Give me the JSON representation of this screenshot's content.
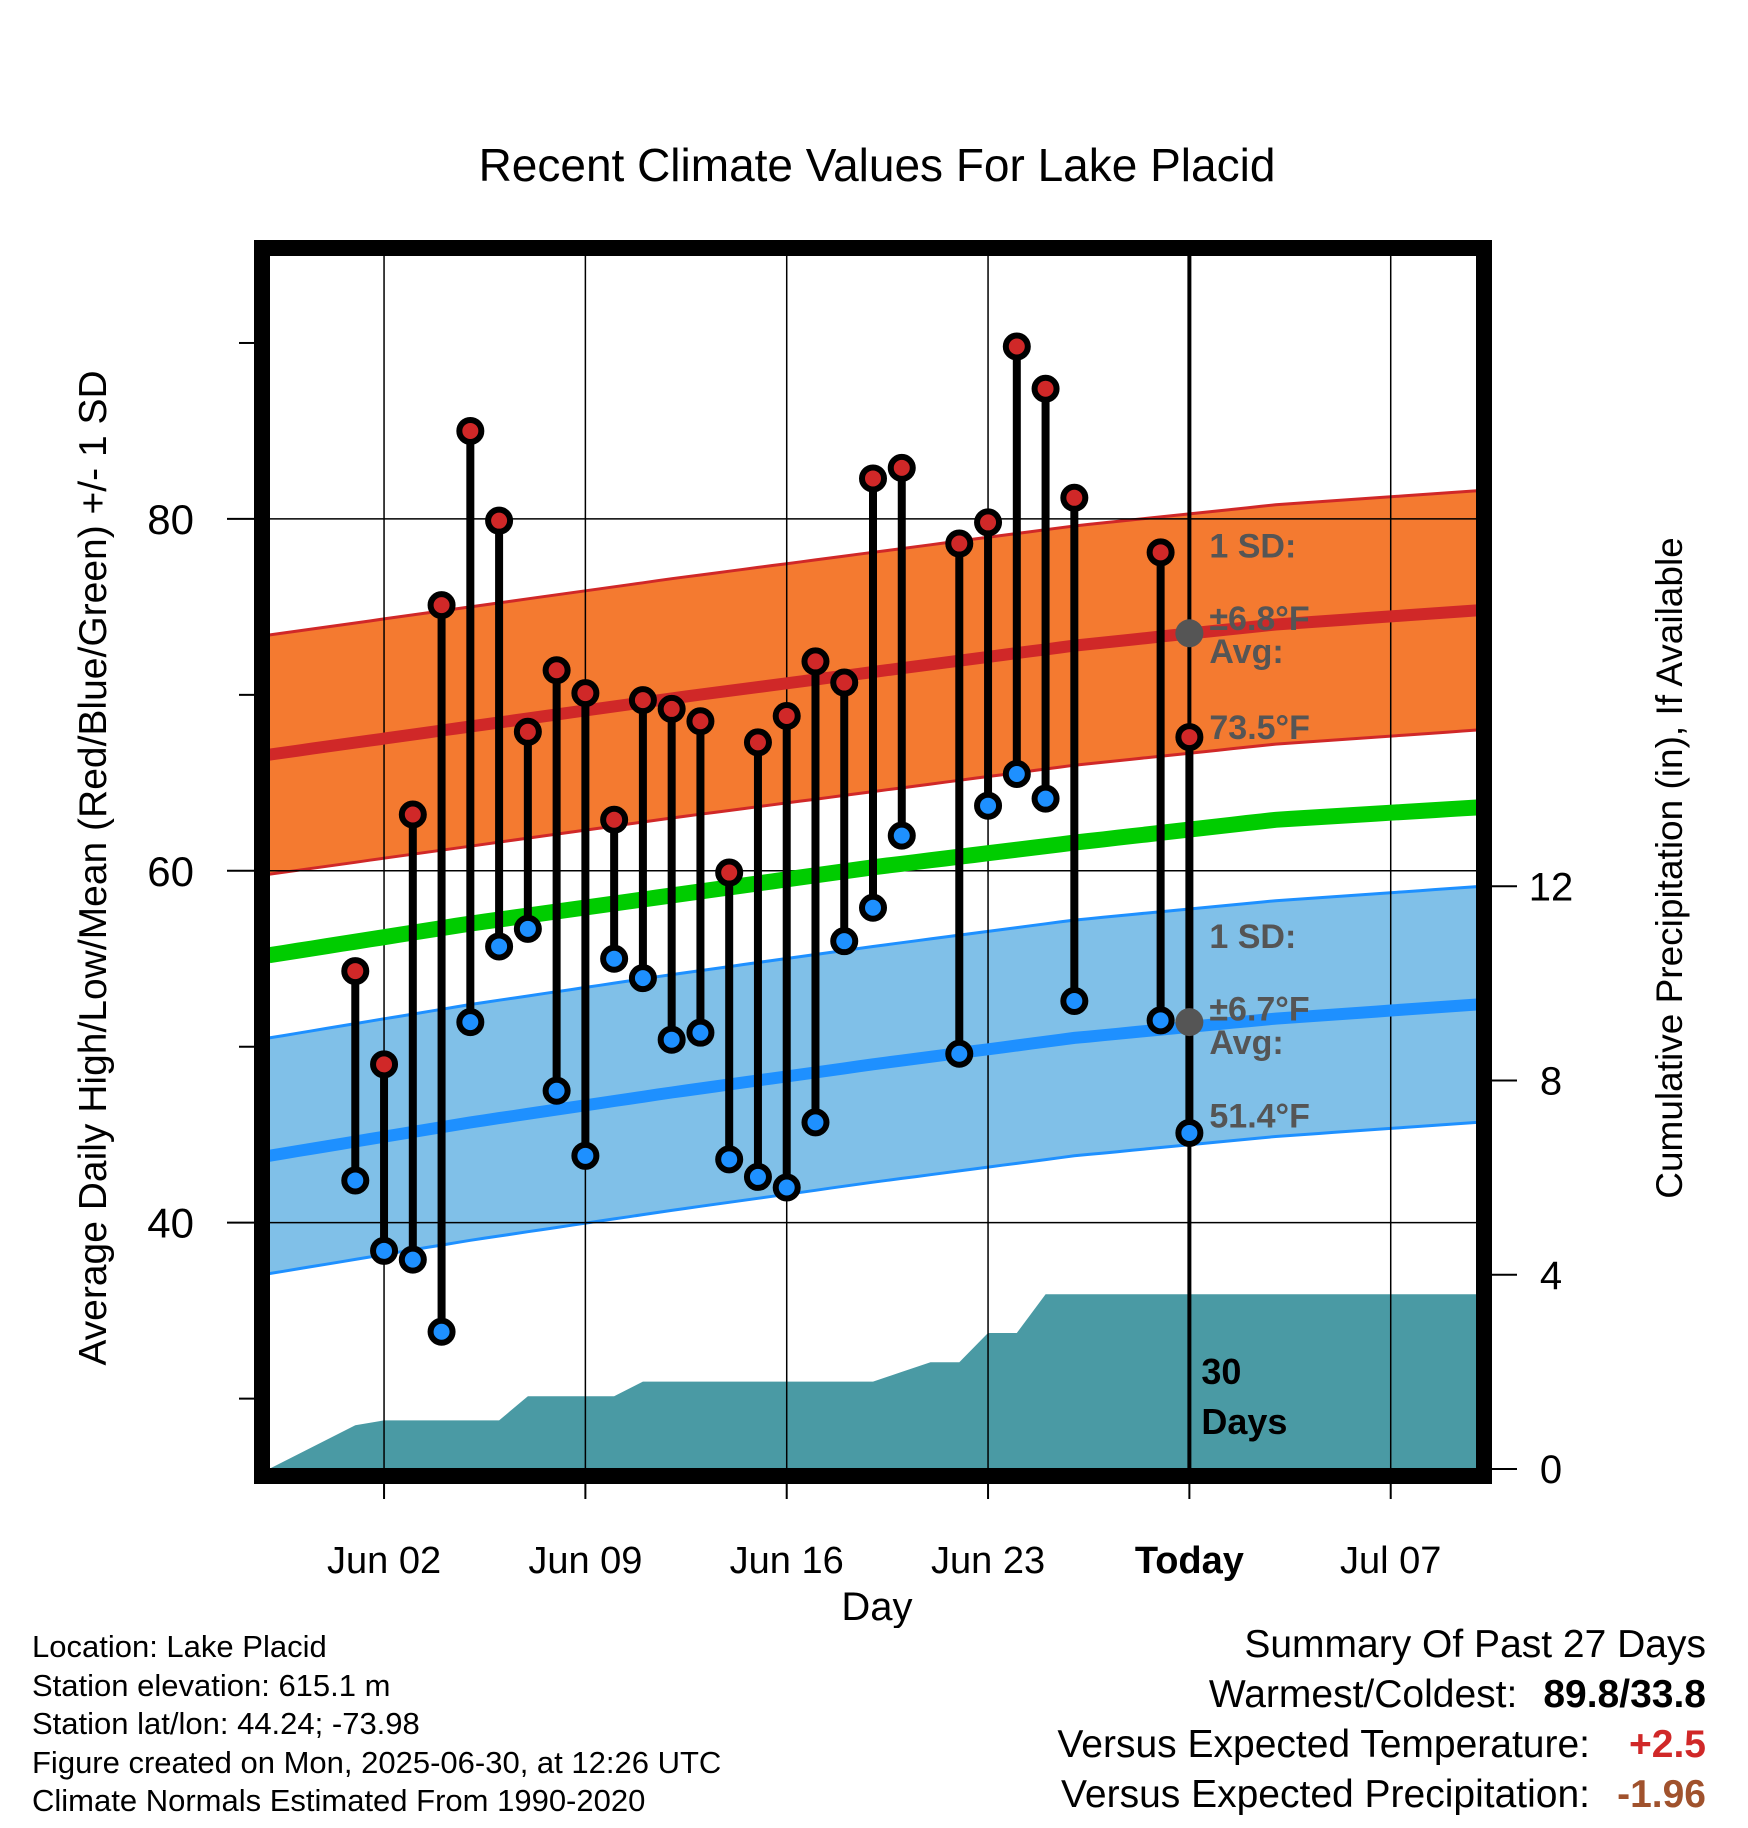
{
  "chart_data": {
    "type": "line",
    "title": "Recent Climate Values For Lake Placid",
    "xlabel": "Day",
    "ylabel_left": "Average Daily High/Low/Mean (Red/Blue/Green) +/- 1 SD",
    "ylabel_right": "Cumulative Precipitation (in), If Available",
    "x_tick_labels": [
      "Jun 02",
      "Jun 09",
      "Jun 16",
      "Jun 23",
      "Today",
      "Jul 07"
    ],
    "x_tick_dates": [
      "2025-06-02",
      "2025-06-09",
      "2025-06-16",
      "2025-06-23",
      "2025-06-30",
      "2025-07-07"
    ],
    "x_range": [
      "2025-05-29",
      "2025-07-10"
    ],
    "today": "2025-06-30",
    "y_left_range": [
      26,
      95
    ],
    "y_left_ticks": [
      40,
      60,
      80
    ],
    "y_right_range": [
      0,
      25
    ],
    "y_right_ticks": [
      0,
      4,
      8,
      12
    ],
    "grid": true,
    "daily_obs": [
      {
        "date": "2025-06-01",
        "high": 54.3,
        "low": 42.4
      },
      {
        "date": "2025-06-02",
        "high": 49.0,
        "low": 38.4
      },
      {
        "date": "2025-06-03",
        "high": 63.2,
        "low": 37.9
      },
      {
        "date": "2025-06-04",
        "high": 75.1,
        "low": 33.8
      },
      {
        "date": "2025-06-05",
        "high": 85.0,
        "low": 51.4
      },
      {
        "date": "2025-06-06",
        "high": 79.9,
        "low": 55.7
      },
      {
        "date": "2025-06-07",
        "high": 67.9,
        "low": 56.7
      },
      {
        "date": "2025-06-08",
        "high": 71.4,
        "low": 47.5
      },
      {
        "date": "2025-06-09",
        "high": 70.1,
        "low": 43.8
      },
      {
        "date": "2025-06-10",
        "high": 62.9,
        "low": 55.0
      },
      {
        "date": "2025-06-11",
        "high": 69.7,
        "low": 53.9
      },
      {
        "date": "2025-06-12",
        "high": 69.2,
        "low": 50.4
      },
      {
        "date": "2025-06-13",
        "high": 68.5,
        "low": 50.8
      },
      {
        "date": "2025-06-14",
        "high": 59.9,
        "low": 43.6
      },
      {
        "date": "2025-06-15",
        "high": 67.3,
        "low": 42.6
      },
      {
        "date": "2025-06-16",
        "high": 68.8,
        "low": 42.0
      },
      {
        "date": "2025-06-17",
        "high": 71.9,
        "low": 45.7
      },
      {
        "date": "2025-06-18",
        "high": 70.7,
        "low": 56.0
      },
      {
        "date": "2025-06-19",
        "high": 82.3,
        "low": 57.9
      },
      {
        "date": "2025-06-20",
        "high": 82.9,
        "low": 62.0
      },
      {
        "date": "2025-06-22",
        "high": 78.6,
        "low": 49.6
      },
      {
        "date": "2025-06-23",
        "high": 79.8,
        "low": 63.7
      },
      {
        "date": "2025-06-24",
        "high": 89.8,
        "low": 65.5
      },
      {
        "date": "2025-06-25",
        "high": 87.4,
        "low": 64.1
      },
      {
        "date": "2025-06-26",
        "high": 81.2,
        "low": 52.6
      },
      {
        "date": "2025-06-29",
        "high": 78.1,
        "low": 51.5
      },
      {
        "date": "2025-06-30",
        "high": 67.6,
        "low": 45.1
      }
    ],
    "normals": {
      "dates": [
        "2025-05-29",
        "2025-06-05",
        "2025-06-12",
        "2025-06-19",
        "2025-06-26",
        "2025-07-03",
        "2025-07-10"
      ],
      "high_mean": [
        66.6,
        68.2,
        69.8,
        71.3,
        72.8,
        74.0,
        74.8
      ],
      "low_mean": [
        43.8,
        45.7,
        47.4,
        49.0,
        50.5,
        51.6,
        52.4
      ],
      "mean": [
        55.2,
        57.0,
        58.6,
        60.2,
        61.6,
        62.9,
        63.6
      ],
      "high_sd": 6.8,
      "low_sd": 6.7
    },
    "precip_cumulative": {
      "dates": [
        "2025-05-29",
        "2025-06-01",
        "2025-06-02",
        "2025-06-06",
        "2025-06-07",
        "2025-06-10",
        "2025-06-11",
        "2025-06-19",
        "2025-06-20",
        "2025-06-21",
        "2025-06-22",
        "2025-06-23",
        "2025-06-24",
        "2025-06-25",
        "2025-07-10"
      ],
      "values": [
        0.0,
        0.9,
        1.0,
        1.0,
        1.5,
        1.5,
        1.8,
        1.8,
        2.0,
        2.2,
        2.2,
        2.8,
        2.8,
        3.6,
        3.6
      ]
    },
    "annotations": {
      "high_sd": "1 SD:",
      "high_sd_value": "±6.8°F",
      "high_avg": "Avg:",
      "high_avg_value": "73.5°F",
      "low_sd": "1 SD:",
      "low_sd_value": "±6.7°F",
      "low_avg": "Avg:",
      "low_avg_value": "51.4°F",
      "period_1": "30",
      "period_2": "Days",
      "today_high_avg": 73.5,
      "today_low_avg": 51.4
    },
    "colors": {
      "high_band": "#f47a30",
      "high_line": "#d02828",
      "low_band": "#80c0e8",
      "low_line": "#1e90ff",
      "mean_line": "#00cc00",
      "precip": "#4a9aa4",
      "high_dot": "#d02828",
      "low_dot": "#1e90ff",
      "annotation": "#555555"
    }
  },
  "footer": {
    "location": "Location: Lake Placid",
    "elevation": "Station elevation: 615.1 m",
    "latlon": "Station lat/lon: 44.24; -73.98",
    "created": "Figure created on Mon, 2025-06-30, at 12:26 UTC",
    "normals": "Climate Normals Estimated From 1990-2020"
  },
  "summary": {
    "title": "Summary Of Past 27 Days",
    "warmest_coldest_label": "Warmest/Coldest:",
    "warmest_coldest_value": "89.8/33.8",
    "temp_label": "Versus Expected Temperature:",
    "temp_value": "+2.5",
    "temp_color": "#d02828",
    "precip_label": "Versus Expected Precipitation:",
    "precip_value": "-1.96",
    "precip_color": "#a0522d"
  }
}
